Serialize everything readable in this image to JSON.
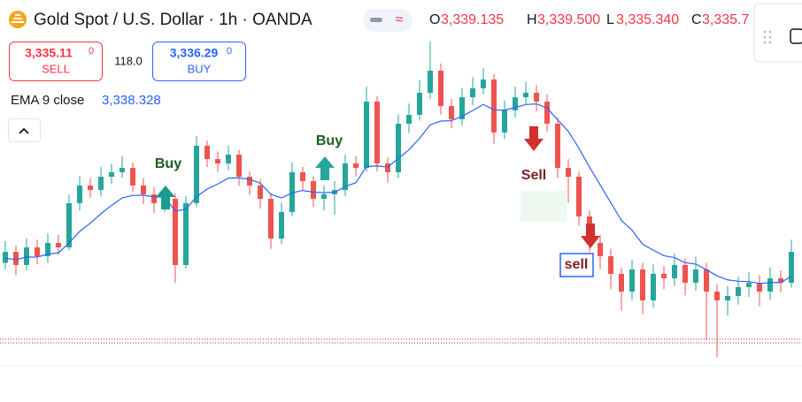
{
  "chart_data": {
    "type": "candlestick",
    "title": "Gold Spot / U.S. Dollar · 1h · OANDA",
    "ohlc_header": [
      {
        "label": "O",
        "value": "3,339.135"
      },
      {
        "label": "H",
        "value": "3,339.500"
      },
      {
        "label": "L",
        "value": "3,335.340"
      },
      {
        "label": "C",
        "value": "3,335.7"
      }
    ],
    "sell": {
      "price": "3,335.11",
      "pip": "0",
      "label": "SELL"
    },
    "spread": "118.0",
    "buy": {
      "price": "3,336.29",
      "pip": "0",
      "label": "BUY"
    },
    "indicator": {
      "name": "EMA 9 close",
      "value": "3,338.328",
      "color": "#2962ff",
      "values": [
        3331.3,
        3331.21,
        3331.37,
        3331.38,
        3331.56,
        3331.65,
        3332.29,
        3333.03,
        3333.57,
        3334.17,
        3334.71,
        3335.2,
        3335.36,
        3335.37,
        3335.27,
        3335.24,
        3334.36,
        3334.46,
        3335.28,
        3335.77,
        3336.1,
        3336.48,
        3336.5,
        3336.4,
        3336.15,
        3335.43,
        3335.2,
        3335.53,
        3335.68,
        3335.57,
        3335.54,
        3335.57,
        3335.94,
        3336.18,
        3337.23,
        3337.27,
        3337.19,
        3337.75,
        3338.31,
        3339.05,
        3339.93,
        3340.17,
        3340.19,
        3340.49,
        3340.85,
        3341.25,
        3340.89,
        3340.88,
        3341.05,
        3341.24,
        3341.28,
        3341.02,
        3340.24,
        3339.51,
        3338.41,
        3337.19,
        3336.04,
        3334.89,
        3333.74,
        3333.11,
        3332.2,
        3331.82,
        3331.46,
        3331.34,
        3331.01,
        3330.92,
        3330.56,
        3330.16,
        3329.9,
        3329.81,
        3329.79,
        3329.66,
        3329.73,
        3329.73,
        3330.13
      ]
    },
    "up_color": "#26a69a",
    "down_color": "#ef5350",
    "ylim": [
      3322,
      3348
    ],
    "ohlc": [
      [
        3331.0,
        3332.4,
        3330.6,
        3331.71
      ],
      [
        3331.71,
        3332.1,
        3330.2,
        3330.86
      ],
      [
        3330.86,
        3332.6,
        3330.5,
        3332.0
      ],
      [
        3332.0,
        3332.5,
        3330.9,
        3331.43
      ],
      [
        3331.43,
        3332.9,
        3331.0,
        3332.29
      ],
      [
        3332.29,
        3332.8,
        3331.5,
        3332.0
      ],
      [
        3332.0,
        3335.4,
        3331.8,
        3334.86
      ],
      [
        3334.86,
        3336.6,
        3334.4,
        3336.0
      ],
      [
        3336.0,
        3336.5,
        3335.2,
        3335.71
      ],
      [
        3335.71,
        3337.2,
        3335.3,
        3336.57
      ],
      [
        3336.57,
        3337.4,
        3336.1,
        3336.86
      ],
      [
        3336.86,
        3337.9,
        3336.5,
        3337.14
      ],
      [
        3337.14,
        3337.5,
        3335.6,
        3336.0
      ],
      [
        3336.0,
        3336.5,
        3334.8,
        3335.43
      ],
      [
        3335.43,
        3335.9,
        3334.2,
        3334.86
      ],
      [
        3334.86,
        3335.7,
        3334.3,
        3335.14
      ],
      [
        3335.14,
        3335.5,
        3329.7,
        3330.86
      ],
      [
        3330.86,
        3335.3,
        3330.6,
        3334.86
      ],
      [
        3334.86,
        3339.2,
        3334.6,
        3338.57
      ],
      [
        3338.57,
        3338.9,
        3337.2,
        3337.71
      ],
      [
        3337.71,
        3338.2,
        3336.9,
        3337.43
      ],
      [
        3337.43,
        3338.6,
        3337.0,
        3338.0
      ],
      [
        3338.0,
        3338.3,
        3336.0,
        3336.57
      ],
      [
        3336.57,
        3336.9,
        3335.4,
        3336.0
      ],
      [
        3336.0,
        3336.4,
        3334.5,
        3335.14
      ],
      [
        3335.14,
        3335.5,
        3331.9,
        3332.57
      ],
      [
        3332.57,
        3334.9,
        3332.2,
        3334.29
      ],
      [
        3334.29,
        3337.5,
        3334.0,
        3336.86
      ],
      [
        3336.86,
        3337.2,
        3335.7,
        3336.29
      ],
      [
        3336.29,
        3336.6,
        3334.6,
        3335.14
      ],
      [
        3335.14,
        3336.0,
        3334.4,
        3335.43
      ],
      [
        3335.43,
        3336.3,
        3334.1,
        3335.71
      ],
      [
        3335.71,
        3338.0,
        3335.3,
        3337.43
      ],
      [
        3337.43,
        3337.9,
        3336.6,
        3337.14
      ],
      [
        3337.14,
        3342.4,
        3336.9,
        3341.43
      ],
      [
        3341.43,
        3341.8,
        3336.9,
        3337.43
      ],
      [
        3337.43,
        3337.8,
        3336.2,
        3336.86
      ],
      [
        3336.86,
        3340.6,
        3336.5,
        3340.0
      ],
      [
        3340.0,
        3341.3,
        3339.4,
        3340.57
      ],
      [
        3340.57,
        3342.8,
        3340.2,
        3342.0
      ],
      [
        3342.0,
        3345.3,
        3341.6,
        3343.43
      ],
      [
        3343.43,
        3343.9,
        3340.6,
        3341.14
      ],
      [
        3341.14,
        3341.6,
        3339.7,
        3340.29
      ],
      [
        3340.29,
        3342.3,
        3339.9,
        3341.71
      ],
      [
        3341.71,
        3343.0,
        3341.2,
        3342.29
      ],
      [
        3342.29,
        3343.6,
        3341.9,
        3342.86
      ],
      [
        3342.86,
        3343.2,
        3338.7,
        3339.43
      ],
      [
        3339.43,
        3341.5,
        3339.0,
        3340.86
      ],
      [
        3340.86,
        3342.4,
        3340.4,
        3341.71
      ],
      [
        3341.71,
        3342.7,
        3341.2,
        3342.0
      ],
      [
        3342.0,
        3342.5,
        3340.8,
        3341.43
      ],
      [
        3341.43,
        3341.9,
        3339.5,
        3340.0
      ],
      [
        3340.0,
        3340.4,
        3336.5,
        3337.14
      ],
      [
        3337.14,
        3337.7,
        3334.9,
        3336.57
      ],
      [
        3336.57,
        3336.9,
        3333.4,
        3334.0
      ],
      [
        3334.0,
        3334.4,
        3331.7,
        3332.29
      ],
      [
        3332.29,
        3332.8,
        3330.6,
        3331.43
      ],
      [
        3331.43,
        3331.9,
        3329.3,
        3330.29
      ],
      [
        3330.29,
        3330.7,
        3327.9,
        3329.14
      ],
      [
        3329.14,
        3331.2,
        3328.6,
        3330.57
      ],
      [
        3330.57,
        3331.0,
        3327.7,
        3328.57
      ],
      [
        3328.57,
        3330.9,
        3328.1,
        3330.29
      ],
      [
        3330.29,
        3330.8,
        3329.3,
        3330.0
      ],
      [
        3330.0,
        3331.6,
        3329.5,
        3330.86
      ],
      [
        3330.86,
        3331.3,
        3328.9,
        3329.71
      ],
      [
        3329.71,
        3331.4,
        3329.2,
        3330.57
      ],
      [
        3330.57,
        3331.0,
        3326.0,
        3329.14
      ],
      [
        3329.14,
        3329.6,
        3324.9,
        3328.57
      ],
      [
        3328.57,
        3329.5,
        3327.6,
        3328.86
      ],
      [
        3328.86,
        3330.1,
        3328.3,
        3329.43
      ],
      [
        3329.43,
        3330.4,
        3328.8,
        3329.71
      ],
      [
        3329.71,
        3330.2,
        3328.2,
        3329.14
      ],
      [
        3329.14,
        3330.7,
        3328.6,
        3330.0
      ],
      [
        3330.0,
        3330.5,
        3329.1,
        3329.71
      ],
      [
        3329.71,
        3332.5,
        3329.4,
        3331.71
      ]
    ],
    "annotations": [
      "Buy",
      "Buy",
      "Sell",
      "sell"
    ]
  }
}
